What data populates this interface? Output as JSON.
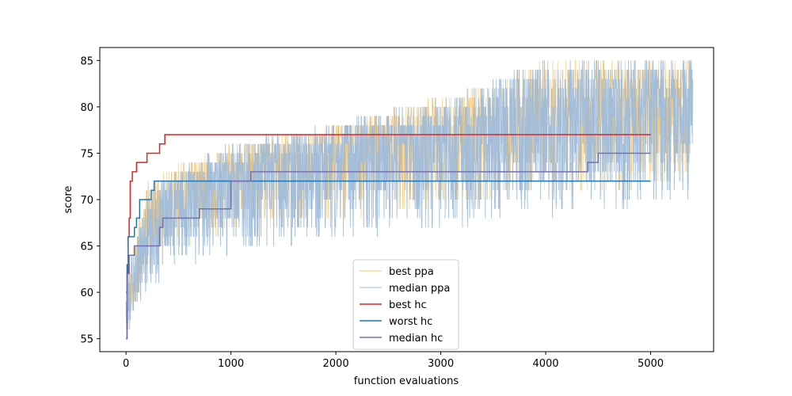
{
  "chart_data": {
    "type": "line",
    "title": "",
    "xlabel": "function evaluations",
    "ylabel": "score",
    "xlim": [
      -250,
      5600
    ],
    "ylim": [
      53.6,
      86.4
    ],
    "xticks": [
      0,
      1000,
      2000,
      3000,
      4000,
      5000
    ],
    "yticks": [
      55,
      60,
      65,
      70,
      75,
      80,
      85
    ],
    "grid": false,
    "legend_position": "lower-center",
    "colors": {
      "best_ppa": "#f2c46d",
      "median_ppa": "#9fbbd9",
      "best_hc": "#d62728",
      "worst_hc": "#1f77b4",
      "median_hc": "#7570b3"
    },
    "legend": [
      "best ppa",
      "median ppa",
      "best hc",
      "worst hc",
      "median hc"
    ],
    "series": [
      {
        "name": "best ppa",
        "kind": "noisy-band",
        "trend": [
          [
            0,
            58
          ],
          [
            200,
            68
          ],
          [
            500,
            72
          ],
          [
            1000,
            74
          ],
          [
            2000,
            76
          ],
          [
            3000,
            78
          ],
          [
            4000,
            80
          ],
          [
            5000,
            81
          ],
          [
            5400,
            82
          ]
        ],
        "upper": [
          [
            0,
            62
          ],
          [
            200,
            72
          ],
          [
            500,
            74
          ],
          [
            1000,
            76
          ],
          [
            2000,
            78
          ],
          [
            3000,
            81
          ],
          [
            3500,
            83
          ],
          [
            4000,
            85
          ],
          [
            5400,
            85
          ]
        ],
        "lower": [
          [
            0,
            56
          ],
          [
            200,
            62
          ],
          [
            500,
            65
          ],
          [
            1000,
            66
          ],
          [
            2000,
            68
          ],
          [
            3000,
            69
          ],
          [
            4000,
            70
          ],
          [
            5400,
            72
          ]
        ],
        "x_end": 5400
      },
      {
        "name": "median ppa",
        "kind": "noisy-band",
        "trend": [
          [
            0,
            57
          ],
          [
            200,
            67
          ],
          [
            500,
            71
          ],
          [
            1000,
            73
          ],
          [
            2000,
            75
          ],
          [
            3000,
            77
          ],
          [
            4000,
            79
          ],
          [
            5000,
            80
          ],
          [
            5400,
            81
          ]
        ],
        "upper": [
          [
            0,
            61
          ],
          [
            200,
            71
          ],
          [
            500,
            73
          ],
          [
            1000,
            76
          ],
          [
            2000,
            78
          ],
          [
            3000,
            81
          ],
          [
            3500,
            83
          ],
          [
            4000,
            85
          ],
          [
            5400,
            85
          ]
        ],
        "lower": [
          [
            0,
            55
          ],
          [
            200,
            60
          ],
          [
            500,
            63
          ],
          [
            1000,
            64
          ],
          [
            2000,
            66
          ],
          [
            3000,
            67
          ],
          [
            4000,
            68
          ],
          [
            5400,
            70
          ]
        ],
        "x_end": 5400
      },
      {
        "name": "best hc",
        "kind": "step",
        "points": [
          [
            0,
            60
          ],
          [
            10,
            62
          ],
          [
            20,
            66
          ],
          [
            30,
            68
          ],
          [
            40,
            72
          ],
          [
            60,
            73
          ],
          [
            100,
            74
          ],
          [
            200,
            75
          ],
          [
            320,
            76
          ],
          [
            370,
            77
          ],
          [
            5000,
            77
          ]
        ]
      },
      {
        "name": "worst hc",
        "kind": "step",
        "points": [
          [
            0,
            55
          ],
          [
            10,
            63
          ],
          [
            20,
            66
          ],
          [
            80,
            67
          ],
          [
            100,
            68
          ],
          [
            130,
            70
          ],
          [
            240,
            71
          ],
          [
            270,
            72
          ],
          [
            5000,
            72
          ]
        ]
      },
      {
        "name": "median hc",
        "kind": "step",
        "points": [
          [
            0,
            55
          ],
          [
            10,
            62
          ],
          [
            30,
            64
          ],
          [
            80,
            65
          ],
          [
            320,
            67
          ],
          [
            350,
            68
          ],
          [
            700,
            69
          ],
          [
            1000,
            72
          ],
          [
            1190,
            73
          ],
          [
            4400,
            74
          ],
          [
            4500,
            75
          ],
          [
            5000,
            75
          ]
        ]
      }
    ]
  }
}
